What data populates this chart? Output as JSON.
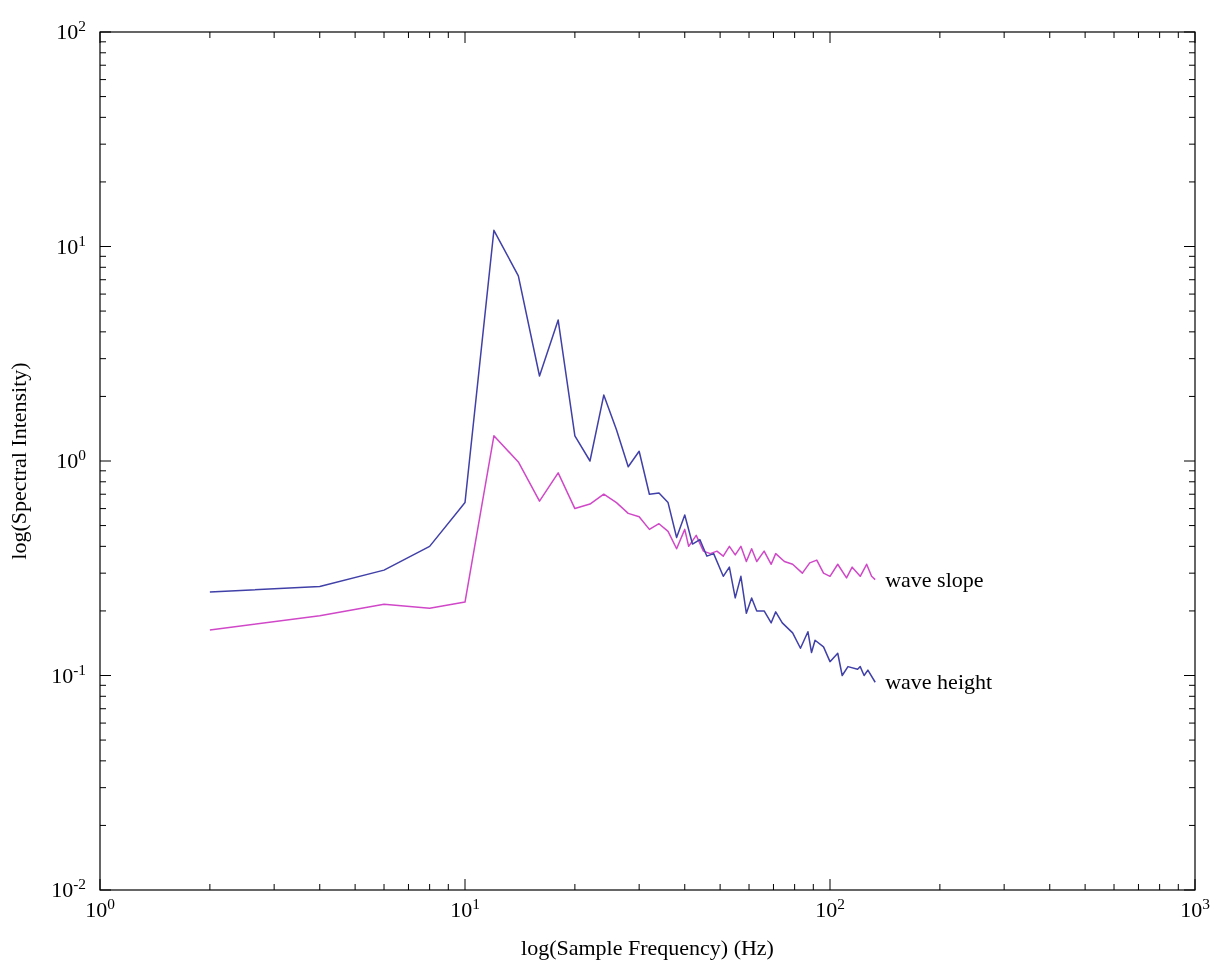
{
  "chart_data": {
    "type": "line",
    "xlabel": "log(Sample Frequency) (Hz)",
    "ylabel": "log(Spectral Intensity)",
    "log": "xy",
    "xlim": [
      1,
      1000
    ],
    "ylim": [
      0.01,
      100
    ],
    "xticks": [
      {
        "value": 1,
        "label": "10$^{0}$"
      },
      {
        "value": 2,
        "label": null
      },
      {
        "value": 3,
        "label": null
      },
      {
        "value": 4,
        "label": null
      },
      {
        "value": 5,
        "label": null
      },
      {
        "value": 6,
        "label": null
      },
      {
        "value": 7,
        "label": null
      },
      {
        "value": 8,
        "label": null
      },
      {
        "value": 9,
        "label": null
      },
      {
        "value": 10,
        "label": "10$^{1}$"
      },
      {
        "value": 20,
        "label": null
      },
      {
        "value": 30,
        "label": null
      },
      {
        "value": 40,
        "label": null
      },
      {
        "value": 50,
        "label": null
      },
      {
        "value": 60,
        "label": null
      },
      {
        "value": 70,
        "label": null
      },
      {
        "value": 80,
        "label": null
      },
      {
        "value": 90,
        "label": null
      },
      {
        "value": 100,
        "label": "10$^{2}$"
      },
      {
        "value": 200,
        "label": null
      },
      {
        "value": 300,
        "label": null
      },
      {
        "value": 400,
        "label": null
      },
      {
        "value": 500,
        "label": null
      },
      {
        "value": 600,
        "label": null
      },
      {
        "value": 700,
        "label": null
      },
      {
        "value": 800,
        "label": null
      },
      {
        "value": 900,
        "label": null
      },
      {
        "value": 1000,
        "label": "10$^{3}$"
      }
    ],
    "yticks": [
      {
        "value": 0.01,
        "label": "10$^{-2}$"
      },
      {
        "value": 0.02,
        "label": null
      },
      {
        "value": 0.03,
        "label": null
      },
      {
        "value": 0.04,
        "label": null
      },
      {
        "value": 0.05,
        "label": null
      },
      {
        "value": 0.06,
        "label": null
      },
      {
        "value": 0.07,
        "label": null
      },
      {
        "value": 0.08,
        "label": null
      },
      {
        "value": 0.09,
        "label": null
      },
      {
        "value": 0.1,
        "label": "10$^{-1}$"
      },
      {
        "value": 0.2,
        "label": null
      },
      {
        "value": 0.3,
        "label": null
      },
      {
        "value": 0.4,
        "label": null
      },
      {
        "value": 0.5,
        "label": null
      },
      {
        "value": 0.6,
        "label": null
      },
      {
        "value": 0.7,
        "label": null
      },
      {
        "value": 0.8,
        "label": null
      },
      {
        "value": 0.9,
        "label": null
      },
      {
        "value": 1,
        "label": "10$^{0}$"
      },
      {
        "value": 2,
        "label": null
      },
      {
        "value": 3,
        "label": null
      },
      {
        "value": 4,
        "label": null
      },
      {
        "value": 5,
        "label": null
      },
      {
        "value": 6,
        "label": null
      },
      {
        "value": 7,
        "label": null
      },
      {
        "value": 8,
        "label": null
      },
      {
        "value": 9,
        "label": null
      },
      {
        "value": 10,
        "label": "10$^{1}$"
      },
      {
        "value": 20,
        "label": null
      },
      {
        "value": 30,
        "label": null
      },
      {
        "value": 40,
        "label": null
      },
      {
        "value": 50,
        "label": null
      },
      {
        "value": 60,
        "label": null
      },
      {
        "value": 70,
        "label": null
      },
      {
        "value": 80,
        "label": null
      },
      {
        "value": 90,
        "label": null
      },
      {
        "value": 100,
        "label": "10$^{2}$"
      }
    ],
    "series": [
      {
        "name": "wave slope",
        "color": "#d048c8",
        "x": [
          2,
          4,
          6,
          8,
          10,
          12,
          14,
          16,
          18,
          20,
          22,
          24,
          26,
          28,
          30,
          32,
          34,
          36,
          38,
          40,
          41,
          43,
          45,
          47,
          49,
          51,
          53,
          55,
          57,
          59,
          61,
          63,
          66,
          69,
          71,
          75,
          79,
          84,
          88,
          92,
          96,
          100,
          105,
          111,
          115,
          121,
          126,
          130,
          133
        ],
        "values": [
          0.163,
          0.19,
          0.215,
          0.206,
          0.22,
          1.31,
          0.99,
          0.65,
          0.88,
          0.6,
          0.63,
          0.7,
          0.64,
          0.57,
          0.55,
          0.48,
          0.51,
          0.47,
          0.39,
          0.48,
          0.4,
          0.45,
          0.38,
          0.37,
          0.38,
          0.36,
          0.4,
          0.365,
          0.4,
          0.34,
          0.39,
          0.34,
          0.38,
          0.33,
          0.37,
          0.34,
          0.33,
          0.3,
          0.335,
          0.345,
          0.3,
          0.29,
          0.33,
          0.285,
          0.32,
          0.29,
          0.33,
          0.29,
          0.28
        ]
      },
      {
        "name": "wave height",
        "color": "#4040a8",
        "x": [
          2,
          4,
          6,
          8,
          10,
          12,
          14,
          16,
          18,
          20,
          22,
          24,
          26,
          28,
          30,
          32,
          34,
          36,
          38,
          40,
          42,
          44,
          46,
          48,
          51,
          53,
          55,
          57,
          59,
          61,
          63,
          66,
          69,
          71,
          74,
          79,
          83,
          87,
          89,
          91,
          96,
          100,
          105,
          108,
          112,
          119,
          121,
          124,
          127,
          133
        ],
        "values": [
          0.245,
          0.26,
          0.31,
          0.4,
          0.64,
          11.9,
          7.3,
          2.49,
          4.54,
          1.31,
          1.0,
          2.03,
          1.4,
          0.94,
          1.11,
          0.7,
          0.71,
          0.64,
          0.44,
          0.56,
          0.41,
          0.43,
          0.36,
          0.37,
          0.29,
          0.32,
          0.23,
          0.29,
          0.195,
          0.23,
          0.2,
          0.2,
          0.176,
          0.198,
          0.176,
          0.158,
          0.134,
          0.16,
          0.128,
          0.146,
          0.136,
          0.116,
          0.127,
          0.1,
          0.11,
          0.107,
          0.11,
          0.1,
          0.106,
          0.093
        ]
      }
    ]
  }
}
